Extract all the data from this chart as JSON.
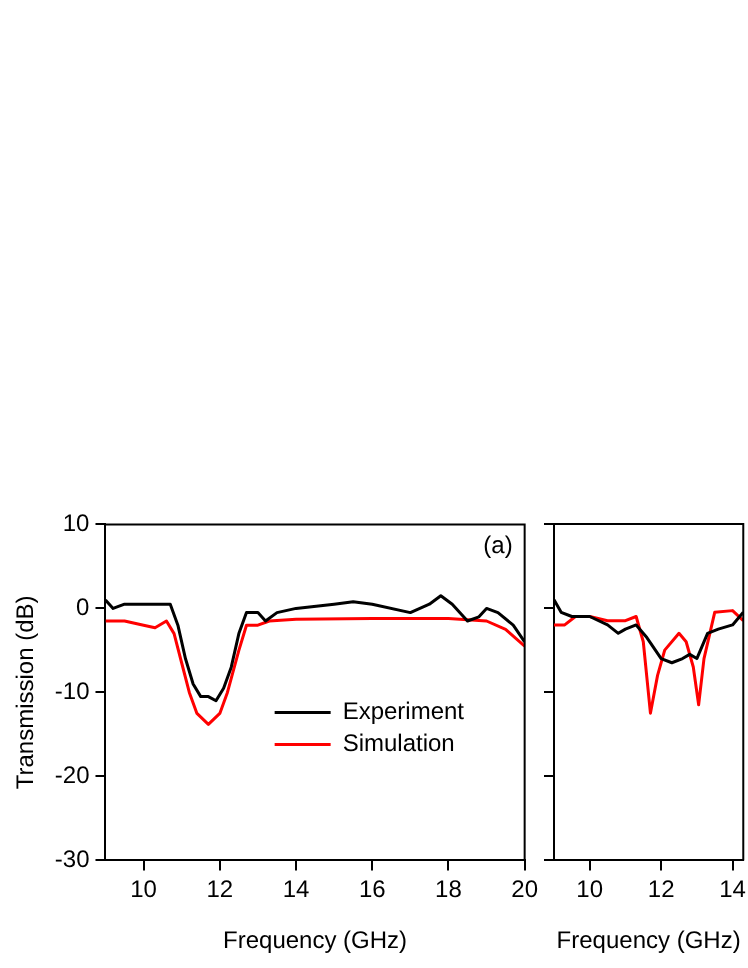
{
  "chart_data": [
    {
      "type": "line",
      "xlabel": "Frequency (GHz)",
      "ylabel": "Transmission (dB)",
      "xlim": [
        9,
        20
      ],
      "xticks": [
        10,
        12,
        14,
        16,
        18,
        20
      ],
      "ylim": [
        -30,
        10
      ],
      "yticks": [
        -30,
        -20,
        -10,
        0,
        10
      ],
      "grid": false,
      "legend": "right",
      "annotations": [
        "(a)"
      ],
      "series": [
        {
          "name": "Experiment",
          "color": "#000000",
          "x": [
            9,
            9.2,
            9.5,
            10,
            10.5,
            10.7,
            10.9,
            11.1,
            11.3,
            11.5,
            11.7,
            11.9,
            12.1,
            12.3,
            12.5,
            12.7,
            13,
            13.2,
            13.5,
            14,
            15,
            15.5,
            16,
            17,
            17.5,
            17.8,
            18.1,
            18.5,
            18.8,
            19,
            19.3,
            19.7,
            20
          ],
          "values": [
            1,
            0,
            0.5,
            0.5,
            0.5,
            0.5,
            -2,
            -6,
            -9,
            -10.5,
            -10.5,
            -11,
            -9.5,
            -7,
            -3,
            -0.5,
            -0.5,
            -1.5,
            -0.5,
            0,
            0.5,
            0.8,
            0.5,
            -0.5,
            0.5,
            1.5,
            0.5,
            -1.5,
            -1,
            0,
            -0.5,
            -2,
            -4
          ]
        },
        {
          "name": "Simulation",
          "color": "#ff0000",
          "x": [
            9,
            9.5,
            10,
            10.3,
            10.6,
            10.8,
            11,
            11.2,
            11.4,
            11.7,
            12,
            12.2,
            12.5,
            12.7,
            13,
            13.3,
            14,
            16,
            18,
            19,
            19.5,
            20
          ],
          "values": [
            -1.5,
            -1.5,
            -2,
            -2.3,
            -1.5,
            -3,
            -6.5,
            -10,
            -12.5,
            -13.8,
            -12.5,
            -10,
            -5,
            -2,
            -2,
            -1.5,
            -1.3,
            -1.2,
            -1.2,
            -1.5,
            -2.5,
            -4.5
          ]
        }
      ]
    },
    {
      "type": "line",
      "xlabel": "Frequency (GHz)",
      "xlim": [
        9,
        14.3
      ],
      "xticks": [
        10,
        12,
        14
      ],
      "ylim": [
        -30,
        10
      ],
      "yticks": [
        -30,
        -20,
        -10,
        0,
        10
      ],
      "grid": false,
      "tick_labels": "x",
      "series": [
        {
          "color": "#000000",
          "x": [
            9,
            9.2,
            9.5,
            10,
            10.5,
            10.8,
            11,
            11.3,
            11.6,
            12,
            12.3,
            12.6,
            12.8,
            13,
            13.3,
            13.6,
            14,
            14.3
          ],
          "values": [
            1,
            -0.5,
            -1,
            -1,
            -2,
            -3,
            -2.5,
            -2,
            -3.5,
            -6,
            -6.5,
            -6,
            -5.5,
            -6,
            -3,
            -2.5,
            -2,
            -0.5
          ]
        },
        {
          "color": "#ff0000",
          "x": [
            9,
            9.3,
            9.6,
            10,
            10.5,
            11,
            11.3,
            11.5,
            11.7,
            11.9,
            12.1,
            12.5,
            12.7,
            12.9,
            13.05,
            13.2,
            13.5,
            14,
            14.3
          ],
          "values": [
            -2,
            -2,
            -1,
            -1,
            -1.5,
            -1.5,
            -1,
            -4,
            -12.5,
            -8,
            -5,
            -3,
            -4,
            -7,
            -11.5,
            -6,
            -0.5,
            -0.3,
            -1.5
          ]
        }
      ]
    }
  ]
}
